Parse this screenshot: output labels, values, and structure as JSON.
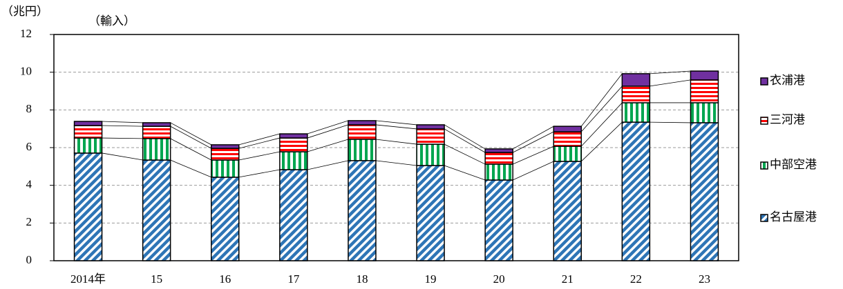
{
  "chart_data": {
    "type": "stacked_bar",
    "unit_label": "（兆円）",
    "title": "（輸入）",
    "categories": [
      "2014年",
      "15",
      "16",
      "17",
      "18",
      "19",
      "20",
      "21",
      "22",
      "23"
    ],
    "series": [
      {
        "name": "名古屋港",
        "color": "#2e75b6",
        "pattern": "diagonal",
        "values": [
          5.71,
          5.34,
          4.43,
          4.83,
          5.31,
          5.05,
          4.28,
          5.27,
          7.35,
          7.32
        ]
      },
      {
        "name": "中部空港",
        "color": "#00a650",
        "pattern": "vertical",
        "values": [
          0.8,
          1.14,
          0.91,
          0.95,
          1.13,
          1.13,
          0.84,
          0.8,
          1.03,
          1.06
        ]
      },
      {
        "name": "三河港",
        "color": "#ff0000",
        "pattern": "horizontal",
        "values": [
          0.66,
          0.65,
          0.62,
          0.73,
          0.77,
          0.81,
          0.62,
          0.77,
          0.88,
          1.21
        ]
      },
      {
        "name": "衣浦港",
        "color": "#7030a0",
        "pattern": "solid",
        "values": [
          0.22,
          0.19,
          0.19,
          0.22,
          0.22,
          0.22,
          0.19,
          0.29,
          0.66,
          0.47
        ]
      }
    ],
    "ylim": [
      0,
      12
    ],
    "yticks": [
      0,
      2,
      4,
      6,
      8,
      10,
      12
    ],
    "grid": true,
    "legend": "right"
  }
}
